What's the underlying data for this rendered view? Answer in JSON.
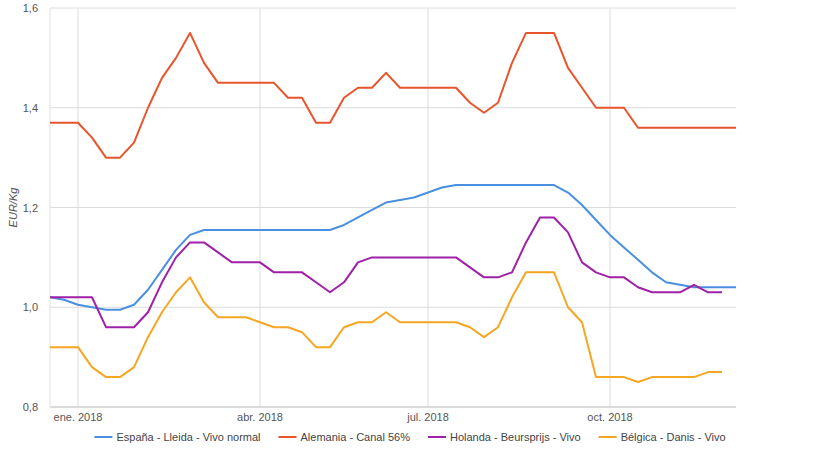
{
  "chart_data": {
    "type": "line",
    "y_label": "EUR/Kg",
    "categories": [
      null,
      null,
      "ene. 2018",
      null,
      null,
      null,
      null,
      null,
      null,
      null,
      null,
      null,
      null,
      null,
      null,
      "abr. 2018",
      null,
      null,
      null,
      null,
      null,
      null,
      null,
      null,
      null,
      null,
      null,
      "jul. 2018",
      null,
      null,
      null,
      null,
      null,
      null,
      null,
      null,
      null,
      null,
      null,
      null,
      "oct. 2018",
      null,
      null,
      null,
      null,
      null,
      null,
      null,
      null,
      null
    ],
    "series": [
      {
        "name": "España - Lleida - Vivo normal",
        "color": "#4a8fe0",
        "values": [
          1.02,
          1.015,
          1.005,
          1.0,
          0.995,
          0.995,
          1.005,
          1.035,
          1.075,
          1.115,
          1.145,
          1.155,
          1.155,
          1.155,
          1.155,
          1.155,
          1.155,
          1.155,
          1.155,
          1.155,
          1.155,
          1.165,
          1.18,
          1.195,
          1.21,
          1.215,
          1.22,
          1.23,
          1.24,
          1.245,
          1.245,
          1.245,
          1.245,
          1.245,
          1.245,
          1.245,
          1.245,
          1.23,
          1.205,
          1.175,
          1.145,
          1.12,
          1.095,
          1.07,
          1.05,
          1.045,
          1.04,
          1.04,
          1.04,
          1.04
        ]
      },
      {
        "name": "Alemania - Canal 56%",
        "color": "#e8542c",
        "values": [
          1.37,
          1.37,
          1.37,
          1.34,
          1.3,
          1.3,
          1.33,
          1.4,
          1.46,
          1.5,
          1.55,
          1.49,
          1.45,
          1.45,
          1.45,
          1.45,
          1.45,
          1.42,
          1.42,
          1.37,
          1.37,
          1.42,
          1.44,
          1.44,
          1.47,
          1.44,
          1.44,
          1.44,
          1.44,
          1.44,
          1.41,
          1.39,
          1.41,
          1.49,
          1.55,
          1.55,
          1.55,
          1.48,
          1.44,
          1.4,
          1.4,
          1.4,
          1.36,
          1.36,
          1.36,
          1.36,
          1.36,
          1.36,
          1.36,
          1.36
        ]
      },
      {
        "name": "Holanda - Beursprijs - Vivo",
        "color": "#a020a8",
        "values": [
          1.02,
          1.02,
          1.02,
          1.02,
          0.96,
          0.96,
          0.96,
          0.99,
          1.05,
          1.1,
          1.13,
          1.13,
          1.11,
          1.09,
          1.09,
          1.09,
          1.07,
          1.07,
          1.07,
          1.05,
          1.03,
          1.05,
          1.09,
          1.1,
          1.1,
          1.1,
          1.1,
          1.1,
          1.1,
          1.1,
          1.08,
          1.06,
          1.06,
          1.07,
          1.13,
          1.18,
          1.18,
          1.15,
          1.09,
          1.07,
          1.06,
          1.06,
          1.04,
          1.03,
          1.03,
          1.03,
          1.045,
          1.03,
          1.03,
          null
        ]
      },
      {
        "name": "Bélgica - Danis - Vivo",
        "color": "#f5a623",
        "values": [
          0.92,
          0.92,
          0.92,
          0.88,
          0.86,
          0.86,
          0.88,
          0.94,
          0.99,
          1.03,
          1.06,
          1.01,
          0.98,
          0.98,
          0.98,
          0.97,
          0.96,
          0.96,
          0.95,
          0.92,
          0.92,
          0.96,
          0.97,
          0.97,
          0.99,
          0.97,
          0.97,
          0.97,
          0.97,
          0.97,
          0.96,
          0.94,
          0.96,
          1.02,
          1.07,
          1.07,
          1.07,
          1.0,
          0.97,
          0.86,
          0.86,
          0.86,
          0.85,
          0.86,
          0.86,
          0.86,
          0.86,
          0.87,
          0.87,
          null
        ]
      }
    ],
    "ylim": [
      0.8,
      1.6
    ],
    "yticks": [
      {
        "value": 0.8,
        "label": "0,8"
      },
      {
        "value": 1.0,
        "label": "1,0"
      },
      {
        "value": 1.2,
        "label": "1,2"
      },
      {
        "value": 1.4,
        "label": "1,4"
      },
      {
        "value": 1.6,
        "label": "1,6"
      }
    ],
    "grid": true,
    "legend": "bottom"
  }
}
